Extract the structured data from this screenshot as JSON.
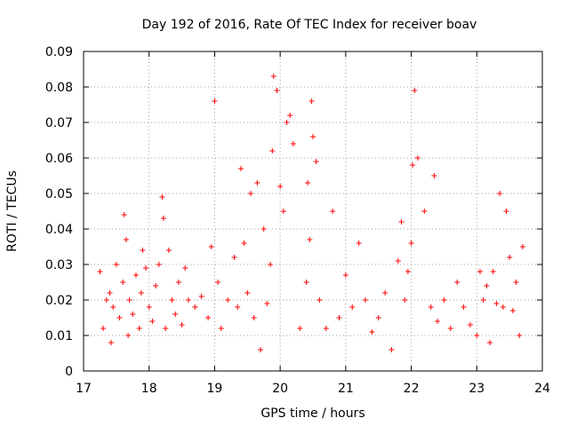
{
  "chart_data": {
    "type": "scatter",
    "title": "Day 192 of 2016, Rate Of TEC Index for receiver boav",
    "xlabel": "GPS time / hours",
    "ylabel": "ROTI / TECUs",
    "xlim": [
      17,
      24
    ],
    "ylim": [
      0,
      0.09
    ],
    "x_ticks": [
      17,
      18,
      19,
      20,
      21,
      22,
      23,
      24
    ],
    "x_tick_labels": [
      "17",
      "18",
      "19",
      "20",
      "21",
      "22",
      "23",
      "24"
    ],
    "y_ticks": [
      0,
      0.01,
      0.02,
      0.03,
      0.04,
      0.05,
      0.06,
      0.07,
      0.08,
      0.09
    ],
    "y_tick_labels": [
      "0",
      "0.01",
      "0.02",
      "0.03",
      "0.04",
      "0.05",
      "0.06",
      "0.07",
      "0.08",
      "0.09"
    ],
    "grid": true,
    "marker": "plus",
    "color": "#ff0000",
    "series": [
      {
        "name": "ROTI",
        "x": [
          17.25,
          17.3,
          17.35,
          17.4,
          17.42,
          17.45,
          17.5,
          17.55,
          17.6,
          17.62,
          17.65,
          17.68,
          17.7,
          17.75,
          17.8,
          17.85,
          17.88,
          17.9,
          17.95,
          18.0,
          18.05,
          18.1,
          18.15,
          18.2,
          18.22,
          18.25,
          18.3,
          18.35,
          18.4,
          18.45,
          18.5,
          18.55,
          18.6,
          18.7,
          18.8,
          18.9,
          18.95,
          19.0,
          19.05,
          19.1,
          19.2,
          19.3,
          19.35,
          19.4,
          19.45,
          19.5,
          19.55,
          19.6,
          19.65,
          19.7,
          19.75,
          19.8,
          19.85,
          19.88,
          19.9,
          19.95,
          20.0,
          20.05,
          20.1,
          20.15,
          20.2,
          20.3,
          20.4,
          20.42,
          20.45,
          20.48,
          20.5,
          20.55,
          20.6,
          20.7,
          20.8,
          20.9,
          21.0,
          21.1,
          21.2,
          21.3,
          21.4,
          21.5,
          21.6,
          21.7,
          21.8,
          21.85,
          21.9,
          21.95,
          22.0,
          22.02,
          22.05,
          22.1,
          22.2,
          22.3,
          22.35,
          22.4,
          22.5,
          22.6,
          22.7,
          22.8,
          22.9,
          23.0,
          23.05,
          23.1,
          23.15,
          23.2,
          23.25,
          23.3,
          23.35,
          23.4,
          23.45,
          23.5,
          23.55,
          23.6,
          23.65,
          23.7
        ],
        "y": [
          0.028,
          0.012,
          0.02,
          0.022,
          0.008,
          0.018,
          0.03,
          0.015,
          0.025,
          0.044,
          0.037,
          0.01,
          0.02,
          0.016,
          0.027,
          0.012,
          0.022,
          0.034,
          0.029,
          0.018,
          0.014,
          0.024,
          0.03,
          0.049,
          0.043,
          0.012,
          0.034,
          0.02,
          0.016,
          0.025,
          0.013,
          0.029,
          0.02,
          0.018,
          0.021,
          0.015,
          0.035,
          0.076,
          0.025,
          0.012,
          0.02,
          0.032,
          0.018,
          0.057,
          0.036,
          0.022,
          0.05,
          0.015,
          0.053,
          0.006,
          0.04,
          0.019,
          0.03,
          0.062,
          0.083,
          0.079,
          0.052,
          0.045,
          0.07,
          0.072,
          0.064,
          0.012,
          0.025,
          0.053,
          0.037,
          0.076,
          0.066,
          0.059,
          0.02,
          0.012,
          0.045,
          0.015,
          0.027,
          0.018,
          0.036,
          0.02,
          0.011,
          0.015,
          0.022,
          0.006,
          0.031,
          0.042,
          0.02,
          0.028,
          0.036,
          0.058,
          0.079,
          0.06,
          0.045,
          0.018,
          0.055,
          0.014,
          0.02,
          0.012,
          0.025,
          0.018,
          0.013,
          0.01,
          0.028,
          0.02,
          0.024,
          0.008,
          0.028,
          0.019,
          0.05,
          0.018,
          0.045,
          0.032,
          0.017,
          0.025,
          0.01,
          0.035
        ]
      }
    ]
  }
}
